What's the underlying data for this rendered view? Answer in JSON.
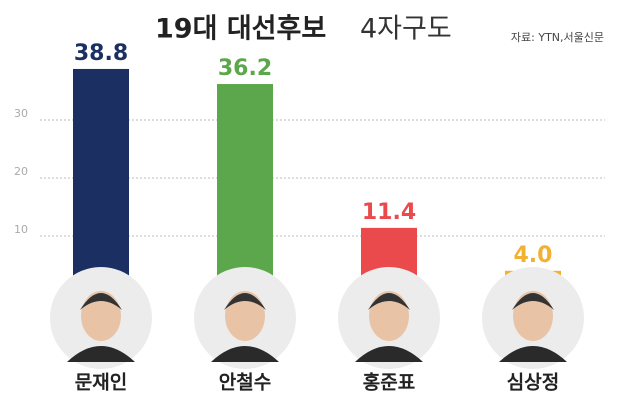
{
  "chart_data": {
    "type": "bar",
    "title": [
      "19대 대선후보",
      "4자구도"
    ],
    "source": "자료: YTN,서울신문",
    "categories": [
      "문재인",
      "안철수",
      "홍준표",
      "심상정"
    ],
    "values": [
      38.8,
      36.2,
      11.4,
      4.0
    ],
    "value_labels": [
      "38.8",
      "36.2",
      "11.4",
      "4.0"
    ],
    "colors": [
      "#1b2f63",
      "#5ca64c",
      "#ea4a4c",
      "#f1b233"
    ],
    "ylim": [
      0,
      40
    ],
    "yticks": [
      10,
      20,
      30
    ],
    "grid": true
  }
}
